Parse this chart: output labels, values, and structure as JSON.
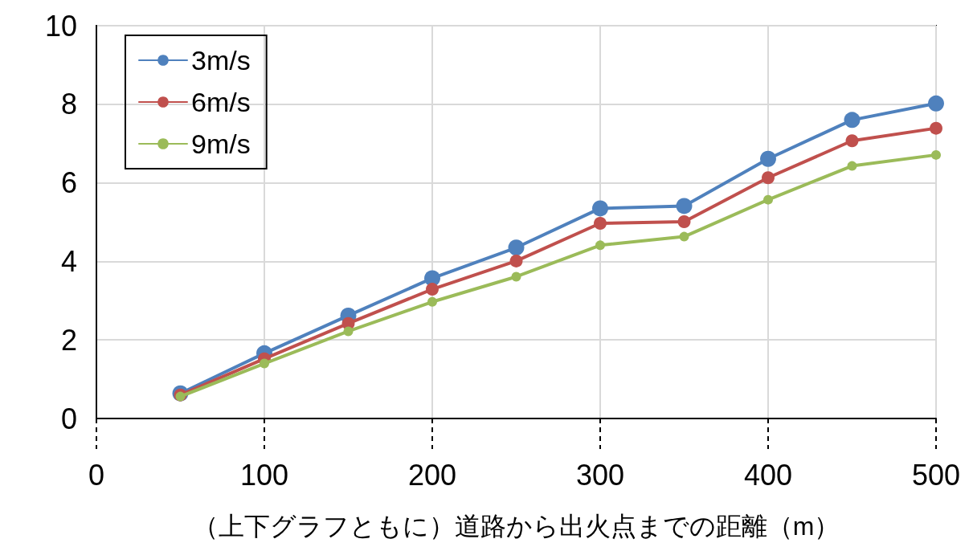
{
  "chart_data": {
    "type": "line",
    "xlabel": "（上下グラフともに）道路から出火点までの距離（m）",
    "x": [
      50,
      100,
      150,
      200,
      250,
      300,
      350,
      400,
      450,
      500
    ],
    "series": [
      {
        "name": "3m/s",
        "color": "#4f81bd",
        "values": [
          0.64,
          1.66,
          2.62,
          3.57,
          4.35,
          5.35,
          5.41,
          6.61,
          7.6,
          8.02
        ]
      },
      {
        "name": "6m/s",
        "color": "#c0504d",
        "values": [
          0.6,
          1.52,
          2.42,
          3.29,
          4.01,
          4.97,
          5.01,
          6.13,
          7.07,
          7.39
        ]
      },
      {
        "name": "9m/s",
        "color": "#9bbb59",
        "values": [
          0.56,
          1.4,
          2.22,
          2.97,
          3.61,
          4.41,
          4.63,
          5.57,
          6.43,
          6.71
        ]
      }
    ],
    "xlim": [
      0,
      500
    ],
    "xticks": [
      0,
      100,
      200,
      300,
      400,
      500
    ],
    "ylim": [
      0,
      10
    ],
    "yticks": [
      0,
      2,
      4,
      6,
      8,
      10
    ],
    "grid": true,
    "legend": "top left",
    "marker": "circle",
    "line_style": "solid"
  }
}
